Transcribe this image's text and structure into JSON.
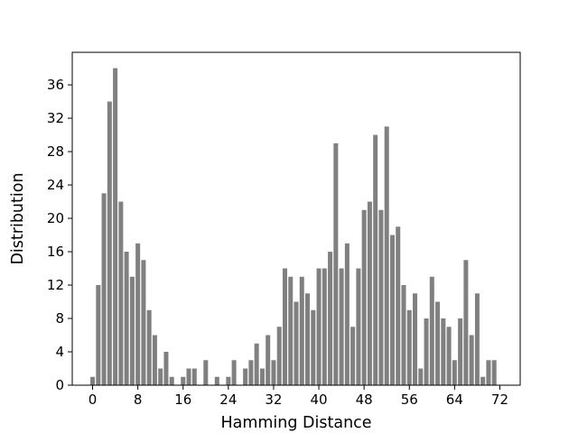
{
  "chart_data": {
    "type": "bar",
    "xlabel": "Hamming Distance",
    "ylabel": "Distribution",
    "x": [
      0,
      1,
      2,
      3,
      4,
      5,
      6,
      7,
      8,
      9,
      10,
      11,
      12,
      13,
      14,
      15,
      16,
      17,
      18,
      19,
      20,
      21,
      22,
      23,
      24,
      25,
      26,
      27,
      28,
      29,
      30,
      31,
      32,
      33,
      34,
      35,
      36,
      37,
      38,
      39,
      40,
      41,
      42,
      43,
      44,
      45,
      46,
      47,
      48,
      49,
      50,
      51,
      52,
      53,
      54,
      55,
      56,
      57,
      58,
      59,
      60,
      61,
      62,
      63,
      64,
      65,
      66,
      67,
      68,
      69,
      70,
      71,
      72
    ],
    "values": [
      1,
      12,
      23,
      34,
      38,
      22,
      16,
      13,
      17,
      15,
      9,
      6,
      2,
      4,
      1,
      0,
      1,
      2,
      2,
      0,
      3,
      0,
      1,
      0,
      1,
      3,
      0,
      2,
      3,
      5,
      2,
      6,
      3,
      7,
      14,
      13,
      10,
      13,
      11,
      9,
      14,
      14,
      16,
      29,
      14,
      17,
      7,
      14,
      21,
      22,
      30,
      21,
      31,
      18,
      19,
      12,
      9,
      11,
      2,
      8,
      13,
      10,
      8,
      7,
      3,
      8,
      15,
      6,
      11,
      1,
      3,
      3,
      0
    ],
    "xticks": [
      0,
      8,
      16,
      24,
      32,
      40,
      48,
      56,
      64,
      72
    ],
    "yticks": [
      0,
      4,
      8,
      12,
      16,
      20,
      24,
      28,
      32,
      36
    ],
    "xlim": [
      -3.6,
      75.6
    ],
    "ylim": [
      0,
      39.9
    ],
    "bar_color": "#808080",
    "grid": false
  }
}
